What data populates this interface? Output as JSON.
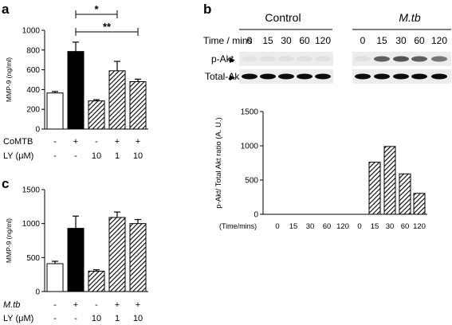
{
  "panels": {
    "a": {
      "letter": "a"
    },
    "b": {
      "letter": "b"
    },
    "c": {
      "letter": "c"
    }
  },
  "blot": {
    "group_labels": [
      "Control",
      "M.tb"
    ],
    "time_label": "Time / mins",
    "times": [
      "0",
      "15",
      "30",
      "60",
      "120",
      "0",
      "15",
      "30",
      "60",
      "120"
    ],
    "rows": [
      {
        "label": "p-Akt",
        "marker": "▶",
        "intensity": [
          0.04,
          0.05,
          0.05,
          0.05,
          0.05,
          0.05,
          0.6,
          0.65,
          0.6,
          0.5
        ]
      },
      {
        "label": "Total-Akt",
        "marker": "▶",
        "intensity": [
          0.95,
          0.95,
          0.95,
          0.95,
          0.95,
          0.95,
          0.95,
          0.95,
          0.95,
          0.95
        ]
      }
    ]
  },
  "chart_data": [
    {
      "panel": "a",
      "type": "bar",
      "ylabel": "MMP-9 (ng/ml)",
      "ylim": [
        0,
        1000
      ],
      "yticks": [
        0,
        200,
        400,
        600,
        800,
        1000
      ],
      "categories": [
        "1",
        "2",
        "3",
        "4",
        "5"
      ],
      "values": [
        365,
        785,
        285,
        590,
        480
      ],
      "errors": [
        15,
        95,
        12,
        95,
        25
      ],
      "fills": [
        "white",
        "black",
        "hatch",
        "hatch",
        "hatch"
      ],
      "condition_rows": [
        {
          "label": "CoMTB",
          "values": [
            "-",
            "+",
            "-",
            "+",
            "+"
          ]
        },
        {
          "label": "LY (μM)",
          "values": [
            "-",
            "-",
            "10",
            "1",
            "10"
          ]
        }
      ],
      "significance": [
        {
          "from": 1,
          "to": 3,
          "label": "*"
        },
        {
          "from": 1,
          "to": 4,
          "label": "**"
        }
      ]
    },
    {
      "panel": "c",
      "type": "bar",
      "ylabel": "MMP-9 (ng/ml)",
      "ylim": [
        0,
        1500
      ],
      "yticks": [
        0,
        500,
        1000,
        1500
      ],
      "categories": [
        "1",
        "2",
        "3",
        "4",
        "5"
      ],
      "values": [
        410,
        930,
        300,
        1090,
        1000
      ],
      "errors": [
        35,
        180,
        20,
        80,
        60
      ],
      "fills": [
        "white",
        "black",
        "hatch",
        "hatch",
        "hatch"
      ],
      "condition_rows": [
        {
          "label": "M.tb",
          "values": [
            "-",
            "+",
            "-",
            "+",
            "+"
          ]
        },
        {
          "label": "LY (μM)",
          "values": [
            "-",
            "-",
            "10",
            "1",
            "10"
          ]
        }
      ],
      "significance": []
    },
    {
      "panel": "b",
      "type": "bar",
      "ylabel": "p-Akt/ Total Akt ratio (A. U.)",
      "ylim": [
        0,
        1500
      ],
      "yticks": [
        0,
        500,
        1000,
        1500
      ],
      "xlabel_row": "(Time/mins)",
      "categories": [
        "0",
        "15",
        "30",
        "60",
        "120",
        "0",
        "15",
        "30",
        "60",
        "120"
      ],
      "values": [
        0,
        0,
        0,
        0,
        0,
        0,
        760,
        990,
        590,
        305
      ],
      "fills": [
        "hatch",
        "hatch",
        "hatch",
        "hatch",
        "hatch",
        "hatch",
        "hatch",
        "hatch",
        "hatch",
        "hatch"
      ]
    }
  ]
}
